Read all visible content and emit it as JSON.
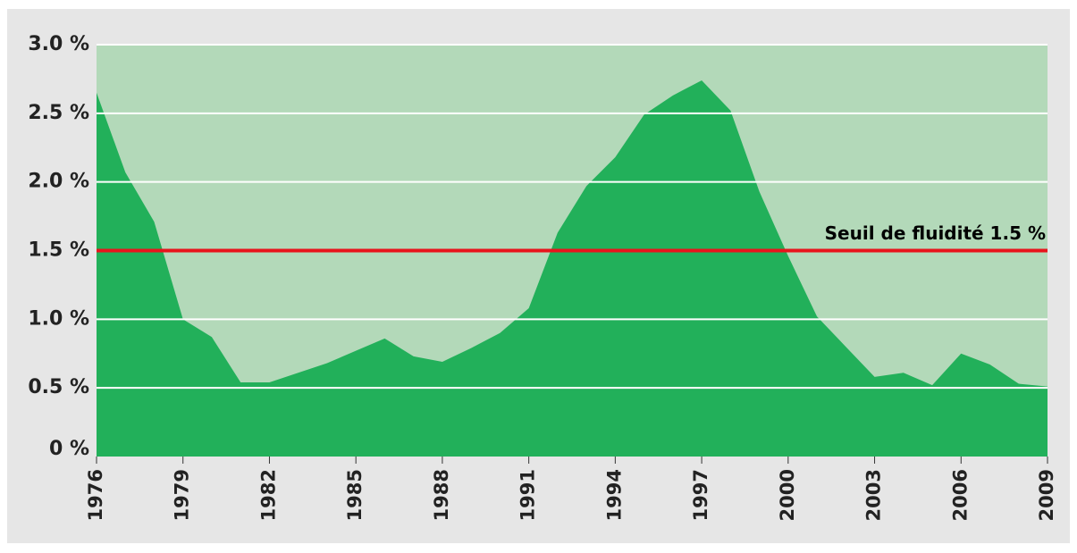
{
  "chart_data": {
    "type": "area",
    "x": [
      1976,
      1977,
      1978,
      1979,
      1980,
      1981,
      1982,
      1983,
      1984,
      1985,
      1986,
      1987,
      1988,
      1989,
      1990,
      1991,
      1992,
      1993,
      1994,
      1995,
      1996,
      1997,
      1998,
      1999,
      2000,
      2001,
      2002,
      2003,
      2004,
      2005,
      2006,
      2007,
      2008,
      2009
    ],
    "values": [
      2.65,
      2.07,
      1.71,
      1.0,
      0.87,
      0.54,
      0.54,
      0.61,
      0.68,
      0.77,
      0.86,
      0.73,
      0.69,
      0.79,
      0.9,
      1.08,
      1.63,
      1.97,
      2.18,
      2.49,
      2.63,
      2.74,
      2.52,
      1.93,
      1.46,
      1.02,
      0.8,
      0.58,
      0.61,
      0.52,
      0.75,
      0.67,
      0.53,
      0.51
    ],
    "color": "#22b05a",
    "plot_background": "#b3d9b9",
    "xlim": [
      1976,
      2009
    ],
    "xticks": [
      1976,
      1979,
      1982,
      1985,
      1988,
      1991,
      1994,
      1997,
      2000,
      2003,
      2006,
      2009
    ],
    "ylim": [
      0,
      3.0
    ],
    "yticks": [
      {
        "value": 0,
        "label": "0 %"
      },
      {
        "value": 0.5,
        "label": "0.5 %"
      },
      {
        "value": 1.0,
        "label": "1.0 %"
      },
      {
        "value": 1.5,
        "label": "1.5 %"
      },
      {
        "value": 2.0,
        "label": "2.0 %"
      },
      {
        "value": 2.5,
        "label": "2.5 %"
      },
      {
        "value": 3.0,
        "label": "3.0 %"
      }
    ],
    "grid": true,
    "threshold": {
      "value": 1.5,
      "label": "Seuil de fluidité 1.5 %",
      "color": "#e8141c"
    }
  }
}
